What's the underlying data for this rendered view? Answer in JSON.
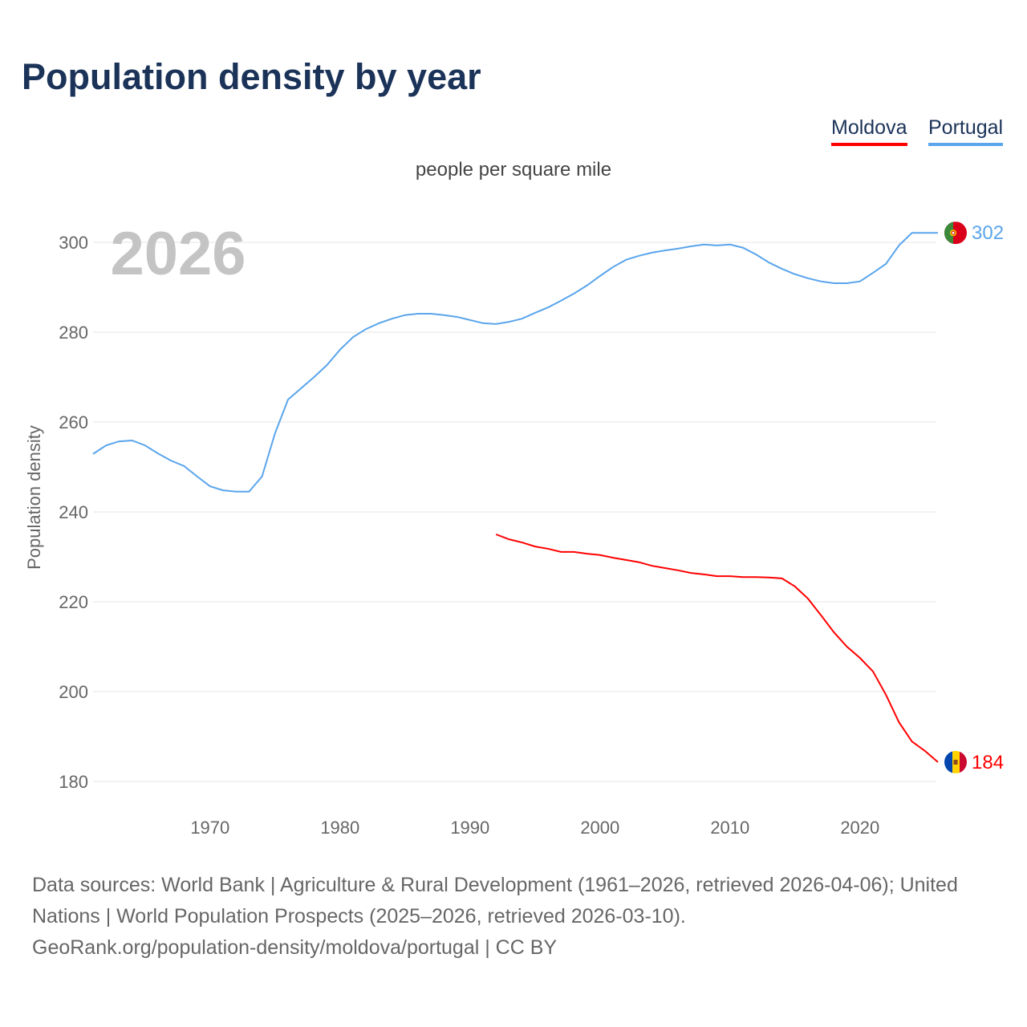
{
  "chart_data": {
    "type": "line",
    "title": "Population density by year",
    "subtitle": "people per square mile",
    "ylabel": "Population density",
    "xlabel": "",
    "year_watermark": "2026",
    "xlim": [
      1961,
      2026
    ],
    "ylim": [
      180,
      300
    ],
    "x_ticks": [
      1970,
      1980,
      1990,
      2000,
      2010,
      2020
    ],
    "y_ticks": [
      180,
      200,
      220,
      240,
      260,
      280,
      300
    ],
    "grid": true,
    "legend_position": "top-right",
    "series": [
      {
        "name": "Moldova",
        "color": "#ff0000",
        "end_label": "184",
        "flag": "moldova-flag",
        "x": [
          1992,
          1993,
          1994,
          1995,
          1996,
          1997,
          1998,
          1999,
          2000,
          2001,
          2002,
          2003,
          2004,
          2005,
          2006,
          2007,
          2008,
          2009,
          2010,
          2011,
          2012,
          2013,
          2014,
          2015,
          2016,
          2017,
          2018,
          2019,
          2020,
          2021,
          2022,
          2023,
          2024,
          2025,
          2026
        ],
        "values": [
          235.0,
          233.9,
          233.2,
          232.3,
          231.8,
          231.1,
          231.1,
          230.7,
          230.4,
          229.8,
          229.3,
          228.8,
          228.0,
          227.5,
          227.0,
          226.4,
          226.1,
          225.7,
          225.7,
          225.5,
          225.5,
          225.4,
          225.2,
          223.4,
          220.7,
          217.0,
          213.2,
          210.0,
          207.5,
          204.5,
          199.3,
          193.2,
          188.9,
          186.8,
          184.3
        ]
      },
      {
        "name": "Portugal",
        "color": "#5aa5ec",
        "end_label": "302",
        "flag": "portugal-flag",
        "x": [
          1961,
          1962,
          1963,
          1964,
          1965,
          1966,
          1967,
          1968,
          1969,
          1970,
          1971,
          1972,
          1973,
          1974,
          1975,
          1976,
          1977,
          1978,
          1979,
          1980,
          1981,
          1982,
          1983,
          1984,
          1985,
          1986,
          1987,
          1988,
          1989,
          1990,
          1991,
          1992,
          1993,
          1994,
          1995,
          1996,
          1997,
          1998,
          1999,
          2000,
          2001,
          2002,
          2003,
          2004,
          2005,
          2006,
          2007,
          2008,
          2009,
          2010,
          2011,
          2012,
          2013,
          2014,
          2015,
          2016,
          2017,
          2018,
          2019,
          2020,
          2021,
          2022,
          2023,
          2024,
          2025,
          2026
        ],
        "values": [
          252.9,
          254.8,
          255.7,
          255.9,
          254.8,
          253.0,
          251.4,
          250.2,
          247.9,
          245.7,
          244.8,
          244.5,
          244.5,
          247.9,
          257.5,
          265.0,
          267.5,
          270.0,
          272.7,
          276.1,
          278.9,
          280.7,
          282.0,
          283.0,
          283.8,
          284.1,
          284.1,
          283.8,
          283.4,
          282.7,
          282.0,
          281.8,
          282.3,
          283.0,
          284.3,
          285.5,
          287.0,
          288.6,
          290.4,
          292.5,
          294.5,
          296.1,
          297.0,
          297.7,
          298.2,
          298.6,
          299.1,
          299.5,
          299.3,
          299.5,
          298.8,
          297.3,
          295.5,
          294.1,
          292.9,
          292.0,
          291.3,
          290.9,
          290.9,
          291.3,
          293.2,
          295.2,
          299.3,
          302.1,
          302.1,
          302.1
        ]
      }
    ]
  },
  "footer": {
    "sources": "Data sources: World Bank | Agriculture & Rural Development (1961–2026, retrieved 2026-04-06); United Nations | World Population Prospects (2025–2026, retrieved 2026-03-10).",
    "link": "GeoRank.org/population-density/moldova/portugal | CC BY"
  }
}
